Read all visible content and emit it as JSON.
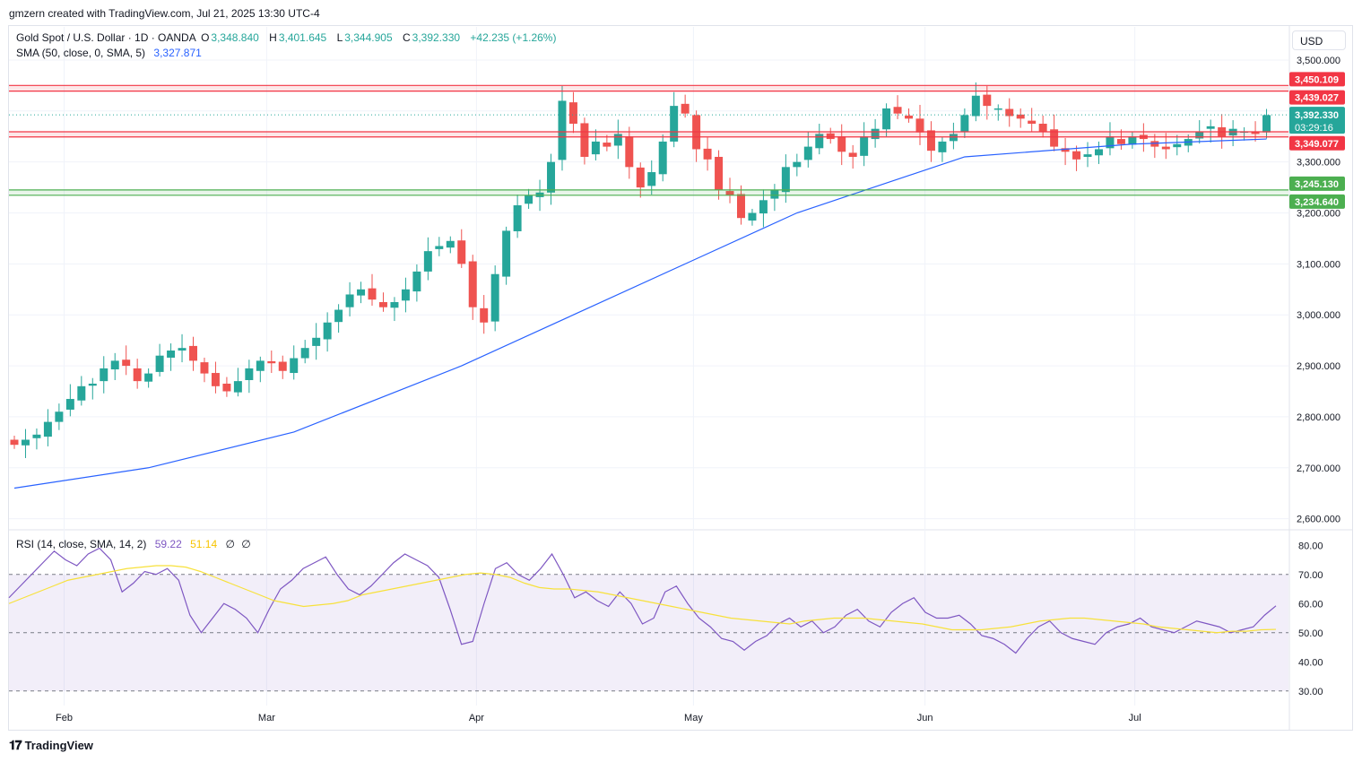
{
  "header": {
    "credit": "gmzern created with TradingView.com, Jul 21, 2025 13:30 UTC-4"
  },
  "currency": "USD",
  "footer": {
    "brand": "TradingView"
  },
  "colors": {
    "up": "#26a69a",
    "down": "#ef5350",
    "sma": "#2962ff",
    "rsi": "#7e57c2",
    "rsi_ma": "#f7e13b",
    "resistance": "#f23645",
    "support": "#4caf50"
  },
  "chart_data": [
    {
      "type": "candlestick",
      "legend": {
        "symbol": "Gold Spot / U.S. Dollar · 1D · OANDA",
        "o_label": "O",
        "o": "3,348.840",
        "h_label": "H",
        "h": "3,401.645",
        "l_label": "L",
        "l": "3,344.905",
        "c_label": "C",
        "c": "3,392.330",
        "change": "+42.235 (+1.26%)",
        "sma_label": "SMA (50, close, 0, SMA, 5)",
        "sma_value": "3,327.871"
      },
      "ylim": [
        2580,
        3565
      ],
      "y_ticks": [
        "3,500.000",
        "3,400.000",
        "3,300.000",
        "3,200.000",
        "3,100.000",
        "3,000.000",
        "2,900.000",
        "2,800.000",
        "2,700.000",
        "2,600.000"
      ],
      "y_tick_values": [
        3500,
        3400,
        3300,
        3200,
        3100,
        3000,
        2900,
        2800,
        2700,
        2600
      ],
      "x_ticks": [
        "Feb",
        "Mar",
        "Apr",
        "May",
        "Jun",
        "Jul"
      ],
      "x_tick_dates": [
        "2025-02-03",
        "2025-03-03",
        "2025-04-01",
        "2025-05-01",
        "2025-06-02",
        "2025-07-01"
      ],
      "date_range": [
        "2025-01-27",
        "2025-07-21"
      ],
      "closes": [
        2745,
        2755,
        2765,
        2790,
        2810,
        2835,
        2860,
        2865,
        2895,
        2910,
        2900,
        2870,
        2885,
        2920,
        2930,
        2935,
        2910,
        2885,
        2860,
        2850,
        2870,
        2895,
        2910,
        2905,
        2890,
        2915,
        2935,
        2955,
        2985,
        3010,
        3040,
        3050,
        3030,
        3015,
        3025,
        3050,
        3085,
        3125,
        3135,
        3145,
        3100,
        3015,
        2985,
        3080,
        3165,
        3215,
        3235,
        3240,
        3300,
        3420,
        3375,
        3310,
        3340,
        3330,
        3355,
        3290,
        3250,
        3280,
        3340,
        3410,
        3395,
        3325,
        3305,
        3245,
        3235,
        3190,
        3200,
        3225,
        3245,
        3290,
        3300,
        3330,
        3355,
        3345,
        3320,
        3310,
        3350,
        3365,
        3405,
        3395,
        3385,
        3358,
        3322,
        3340,
        3355,
        3392,
        3430,
        3410,
        3405,
        3390,
        3385,
        3375,
        3360,
        3330,
        3320,
        3305,
        3315,
        3325,
        3350,
        3335,
        3350,
        3345,
        3330,
        3325,
        3335,
        3345,
        3360,
        3370,
        3350,
        3365,
        3360,
        3355,
        3392
      ],
      "sma_line": [
        [
          0,
          2660
        ],
        [
          12,
          2700
        ],
        [
          25,
          2770
        ],
        [
          40,
          2900
        ],
        [
          50,
          3000
        ],
        [
          60,
          3100
        ],
        [
          70,
          3200
        ],
        [
          85,
          3310
        ],
        [
          100,
          3335
        ],
        [
          112,
          3345
        ]
      ],
      "lines": [
        {
          "kind": "resistance",
          "value": 3450.109,
          "label": "3,450.109"
        },
        {
          "kind": "resistance",
          "value": 3439.027,
          "label": "3,439.027"
        },
        {
          "kind": "resistance",
          "value": 3359.186,
          "label": "3,359.186"
        },
        {
          "kind": "resistance",
          "value": 3349.077,
          "label": "3,349.077"
        },
        {
          "kind": "support",
          "value": 3245.13,
          "label": "3,245.130"
        },
        {
          "kind": "support",
          "value": 3234.64,
          "label": "3,234.640"
        }
      ],
      "last_price": {
        "value": 3392.33,
        "label": "3,392.330",
        "countdown": "03:29:16"
      }
    },
    {
      "type": "line",
      "legend": {
        "name": "RSI (14, close, SMA, 14, 2)",
        "rsi": "59.22",
        "rsi_ma": "51.14",
        "v3": "∅",
        "v4": "∅"
      },
      "ylim": [
        25,
        85
      ],
      "y_ticks": [
        "80.00",
        "70.00",
        "60.00",
        "50.00",
        "40.00",
        "30.00"
      ],
      "y_tick_values": [
        80,
        70,
        60,
        50,
        40,
        30
      ],
      "band": [
        30,
        70
      ],
      "midline": 50,
      "rsi": [
        62,
        66,
        70,
        74,
        78,
        75,
        73,
        77,
        79,
        75,
        64,
        67,
        71,
        70,
        72,
        68,
        56,
        50,
        55,
        60,
        58,
        55,
        50,
        58,
        65,
        68,
        72,
        74,
        76,
        70,
        65,
        63,
        66,
        70,
        74,
        77,
        75,
        73,
        69,
        58,
        46,
        47,
        60,
        72,
        74,
        70,
        68,
        72,
        77,
        70,
        62,
        64,
        61,
        59,
        64,
        60,
        53,
        55,
        64,
        66,
        60,
        55,
        52,
        48,
        47,
        44,
        47,
        49,
        53,
        55,
        52,
        54,
        50,
        52,
        56,
        58,
        54,
        52,
        57,
        60,
        62,
        57,
        55,
        55,
        56,
        53,
        49,
        48,
        46,
        43,
        48,
        52,
        54,
        50,
        48,
        47,
        46,
        50,
        52,
        53,
        55,
        52,
        51,
        50,
        52,
        54,
        53,
        52,
        50,
        51,
        52,
        56,
        59.22
      ],
      "rsi_ma": [
        60,
        62,
        64,
        66,
        68,
        69,
        70,
        71,
        72,
        72.5,
        73,
        73,
        72.5,
        71,
        69,
        67,
        65,
        63,
        61,
        60,
        59,
        59.5,
        60,
        61,
        63,
        64,
        65,
        66,
        67,
        68,
        69,
        70,
        70.5,
        70,
        69,
        67,
        65.5,
        65,
        65,
        64.5,
        64,
        63,
        62,
        61,
        60,
        59,
        58,
        57,
        56,
        55,
        54.5,
        54,
        53.5,
        53,
        54,
        54.5,
        55,
        55,
        55,
        54.5,
        54,
        53.5,
        53,
        52,
        51,
        51,
        51,
        51.5,
        52,
        53,
        54,
        54.5,
        55,
        55,
        54.5,
        54,
        53.5,
        53,
        52,
        51.5,
        51,
        50.5,
        50,
        50.5,
        50.5,
        51,
        51.14
      ]
    }
  ]
}
